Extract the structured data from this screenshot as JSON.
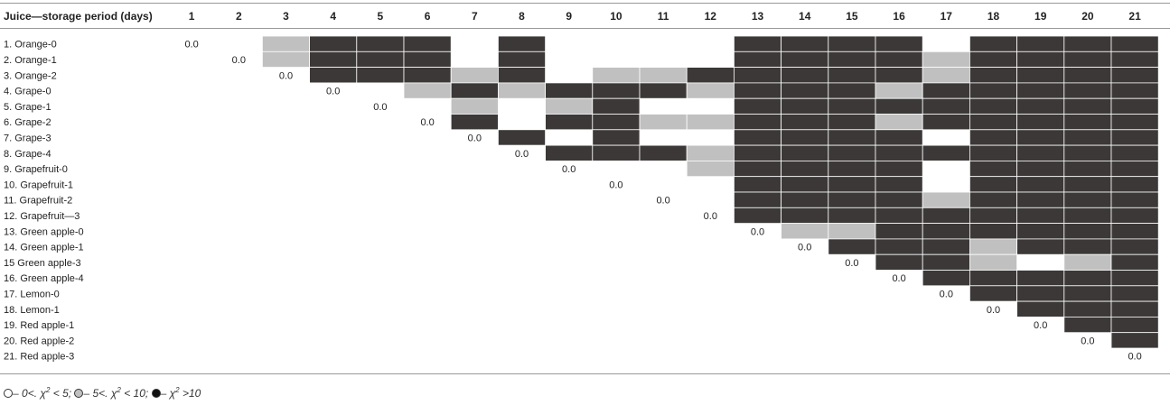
{
  "chart_data": {
    "type": "heatmap",
    "corner_header": "Juice—storage period (days)",
    "columns": [
      "1",
      "2",
      "3",
      "4",
      "5",
      "6",
      "7",
      "8",
      "9",
      "10",
      "11",
      "12",
      "13",
      "14",
      "15",
      "16",
      "17",
      "18",
      "19",
      "20",
      "21"
    ],
    "rows": [
      "1. Orange-0",
      "2. Orange-1",
      "3. Orange-2",
      "4. Grape-0",
      "5. Grape-1",
      "6. Grape-2",
      "7. Grape-3",
      "8. Grape-4",
      "9. Grapefruit-0",
      "10. Grapefruit-1",
      "11. Grapefruit-2",
      "12. Grapefruit—3",
      "13. Green apple-0",
      "14. Green apple-1",
      "15 Green apple-3",
      "16. Green apple-4",
      "17. Lemon-0",
      "18. Lemon-1",
      "19. Red apple-1",
      "20. Red apple-2",
      "21. Red apple-3"
    ],
    "diagonal_label": "0.0",
    "colors": {
      "0": "#ffffff",
      "1": "#c0c0c0",
      "2": "#3b3837"
    },
    "category_legend": [
      "0 <χ²< 5",
      "5 <χ²< 10",
      "χ² >10"
    ],
    "matrix": [
      [
        0,
        0,
        1,
        2,
        2,
        2,
        0,
        2,
        0,
        0,
        0,
        0,
        2,
        2,
        2,
        2,
        0,
        2,
        2,
        2,
        2
      ],
      [
        0,
        0,
        1,
        2,
        2,
        2,
        0,
        2,
        0,
        0,
        0,
        0,
        2,
        2,
        2,
        2,
        1,
        2,
        2,
        2,
        2
      ],
      [
        0,
        0,
        0,
        2,
        2,
        2,
        1,
        2,
        0,
        1,
        1,
        2,
        2,
        2,
        2,
        2,
        1,
        2,
        2,
        2,
        2
      ],
      [
        0,
        0,
        0,
        0,
        0,
        1,
        2,
        1,
        2,
        2,
        2,
        1,
        2,
        2,
        2,
        1,
        2,
        2,
        2,
        2,
        2
      ],
      [
        0,
        0,
        0,
        0,
        0,
        0,
        1,
        0,
        1,
        2,
        0,
        0,
        2,
        2,
        2,
        2,
        2,
        2,
        2,
        2,
        2
      ],
      [
        0,
        0,
        0,
        0,
        0,
        0,
        2,
        0,
        2,
        2,
        1,
        1,
        2,
        2,
        2,
        1,
        2,
        2,
        2,
        2,
        2
      ],
      [
        0,
        0,
        0,
        0,
        0,
        0,
        0,
        2,
        0,
        2,
        0,
        0,
        2,
        2,
        2,
        2,
        0,
        2,
        2,
        2,
        2
      ],
      [
        0,
        0,
        0,
        0,
        0,
        0,
        0,
        0,
        2,
        2,
        2,
        1,
        2,
        2,
        2,
        2,
        2,
        2,
        2,
        2,
        2
      ],
      [
        0,
        0,
        0,
        0,
        0,
        0,
        0,
        0,
        0,
        0,
        0,
        1,
        2,
        2,
        2,
        2,
        0,
        2,
        2,
        2,
        2
      ],
      [
        0,
        0,
        0,
        0,
        0,
        0,
        0,
        0,
        0,
        0,
        0,
        0,
        2,
        2,
        2,
        2,
        0,
        2,
        2,
        2,
        2
      ],
      [
        0,
        0,
        0,
        0,
        0,
        0,
        0,
        0,
        0,
        0,
        0,
        0,
        2,
        2,
        2,
        2,
        1,
        2,
        2,
        2,
        2
      ],
      [
        0,
        0,
        0,
        0,
        0,
        0,
        0,
        0,
        0,
        0,
        0,
        0,
        2,
        2,
        2,
        2,
        2,
        2,
        2,
        2,
        2
      ],
      [
        0,
        0,
        0,
        0,
        0,
        0,
        0,
        0,
        0,
        0,
        0,
        0,
        0,
        1,
        1,
        2,
        2,
        2,
        2,
        2,
        2
      ],
      [
        0,
        0,
        0,
        0,
        0,
        0,
        0,
        0,
        0,
        0,
        0,
        0,
        0,
        0,
        2,
        2,
        2,
        1,
        2,
        2,
        2
      ],
      [
        0,
        0,
        0,
        0,
        0,
        0,
        0,
        0,
        0,
        0,
        0,
        0,
        0,
        0,
        0,
        2,
        2,
        1,
        0,
        1,
        2
      ],
      [
        0,
        0,
        0,
        0,
        0,
        0,
        0,
        0,
        0,
        0,
        0,
        0,
        0,
        0,
        0,
        0,
        2,
        2,
        2,
        2,
        2
      ],
      [
        0,
        0,
        0,
        0,
        0,
        0,
        0,
        0,
        0,
        0,
        0,
        0,
        0,
        0,
        0,
        0,
        0,
        2,
        2,
        2,
        2
      ],
      [
        0,
        0,
        0,
        0,
        0,
        0,
        0,
        0,
        0,
        0,
        0,
        0,
        0,
        0,
        0,
        0,
        0,
        0,
        2,
        2,
        2
      ],
      [
        0,
        0,
        0,
        0,
        0,
        0,
        0,
        0,
        0,
        0,
        0,
        0,
        0,
        0,
        0,
        0,
        0,
        0,
        0,
        2,
        2
      ],
      [
        0,
        0,
        0,
        0,
        0,
        0,
        0,
        0,
        0,
        0,
        0,
        0,
        0,
        0,
        0,
        0,
        0,
        0,
        0,
        0,
        2
      ],
      [
        0,
        0,
        0,
        0,
        0,
        0,
        0,
        0,
        0,
        0,
        0,
        0,
        0,
        0,
        0,
        0,
        0,
        0,
        0,
        0,
        0
      ]
    ]
  },
  "legend": {
    "dash": "–",
    "t1": "0<.",
    "t2": "< 5;",
    "t3": "5<.",
    "t4": "< 10;",
    "t5": ">10",
    "chi": "χ",
    "sup": "2"
  }
}
